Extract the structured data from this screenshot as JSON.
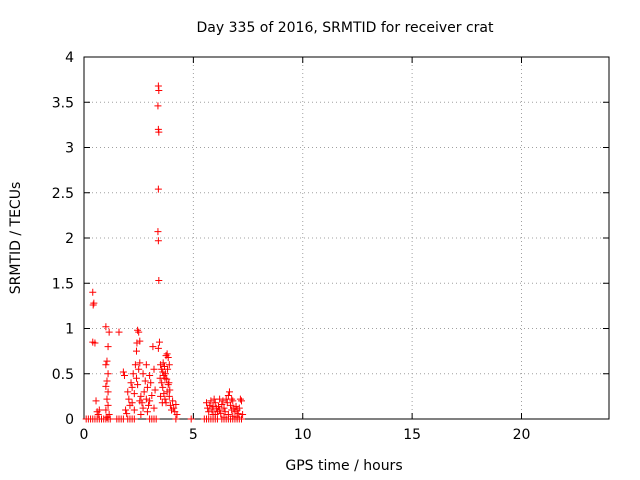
{
  "chart_data": {
    "type": "scatter",
    "title": "Day 335 of 2016, SRMTID for receiver crat",
    "xlabel": "GPS time / hours",
    "ylabel": "SRMTID / TECUs",
    "xlim": [
      0,
      24
    ],
    "ylim": [
      0,
      4
    ],
    "xticks": [
      0,
      5,
      10,
      15,
      20
    ],
    "yticks": [
      0,
      0.5,
      1,
      1.5,
      2,
      2.5,
      3,
      3.5,
      4
    ],
    "xtick_labels": [
      "0",
      "5",
      "10",
      "15",
      "20"
    ],
    "ytick_labels": [
      "0",
      "0.5",
      "1",
      "1.5",
      "2",
      "2.5",
      "3",
      "3.5",
      "4"
    ],
    "grid": true,
    "marker": "+",
    "color": "#ff0000",
    "series": [
      {
        "name": "SRMTID",
        "points": [
          [
            0.1,
            0
          ],
          [
            0.2,
            0
          ],
          [
            0.3,
            0
          ],
          [
            0.4,
            0
          ],
          [
            0.5,
            0
          ],
          [
            0.6,
            0
          ],
          [
            0.7,
            0
          ],
          [
            0.8,
            0
          ],
          [
            0.9,
            0
          ],
          [
            1.0,
            0
          ],
          [
            1.1,
            0
          ],
          [
            1.2,
            0
          ],
          [
            1.5,
            0
          ],
          [
            1.6,
            0
          ],
          [
            1.7,
            0
          ],
          [
            1.8,
            0
          ],
          [
            2.0,
            0
          ],
          [
            2.1,
            0
          ],
          [
            2.2,
            0
          ],
          [
            2.3,
            0
          ],
          [
            3.0,
            0
          ],
          [
            3.1,
            0
          ],
          [
            3.2,
            0
          ],
          [
            3.3,
            0
          ],
          [
            4.2,
            0
          ],
          [
            4.9,
            0
          ],
          [
            5.5,
            0
          ],
          [
            5.6,
            0
          ],
          [
            5.7,
            0
          ],
          [
            5.8,
            0
          ],
          [
            5.9,
            0
          ],
          [
            6.0,
            0
          ],
          [
            6.1,
            0
          ],
          [
            6.3,
            0
          ],
          [
            6.4,
            0
          ],
          [
            6.5,
            0
          ],
          [
            6.6,
            0
          ],
          [
            6.7,
            0
          ],
          [
            6.8,
            0
          ],
          [
            6.9,
            0
          ],
          [
            7.0,
            0
          ],
          [
            7.1,
            0
          ],
          [
            7.2,
            0
          ],
          [
            0.4,
            1.4
          ],
          [
            0.45,
            1.28
          ],
          [
            0.42,
            1.26
          ],
          [
            0.4,
            0.85
          ],
          [
            0.5,
            0.84
          ],
          [
            0.55,
            0.2
          ],
          [
            0.6,
            0.08
          ],
          [
            0.65,
            0.05
          ],
          [
            0.7,
            0.1
          ],
          [
            1.0,
            1.02
          ],
          [
            1.15,
            0.96
          ],
          [
            1.1,
            0.8
          ],
          [
            1.05,
            0.64
          ],
          [
            1.0,
            0.6
          ],
          [
            1.1,
            0.5
          ],
          [
            1.05,
            0.42
          ],
          [
            1.0,
            0.36
          ],
          [
            1.1,
            0.3
          ],
          [
            1.05,
            0.22
          ],
          [
            1.1,
            0.15
          ],
          [
            1.0,
            0.1
          ],
          [
            1.15,
            0.05
          ],
          [
            1.05,
            0.02
          ],
          [
            1.6,
            0.96
          ],
          [
            1.8,
            0.52
          ],
          [
            1.85,
            0.48
          ],
          [
            1.9,
            0.1
          ],
          [
            1.95,
            0.06
          ],
          [
            2.0,
            0.3
          ],
          [
            2.05,
            0.22
          ],
          [
            2.1,
            0.15
          ],
          [
            2.15,
            0.4
          ],
          [
            2.2,
            0.35
          ],
          [
            2.25,
            0.5
          ],
          [
            2.3,
            0.28
          ],
          [
            2.35,
            0.6
          ],
          [
            2.4,
            0.75
          ],
          [
            2.42,
            0.84
          ],
          [
            2.45,
            0.98
          ],
          [
            2.5,
            0.96
          ],
          [
            2.55,
            0.86
          ],
          [
            2.4,
            0.45
          ],
          [
            2.45,
            0.38
          ],
          [
            2.5,
            0.55
          ],
          [
            2.55,
            0.62
          ],
          [
            2.6,
            0.25
          ],
          [
            2.65,
            0.18
          ],
          [
            2.7,
            0.12
          ],
          [
            2.75,
            0.3
          ],
          [
            2.8,
            0.42
          ],
          [
            2.85,
            0.22
          ],
          [
            2.9,
            0.35
          ],
          [
            2.95,
            0.15
          ],
          [
            3.0,
            0.48
          ],
          [
            3.05,
            0.4
          ],
          [
            3.1,
            0.26
          ],
          [
            3.15,
            0.8
          ],
          [
            3.2,
            0.55
          ],
          [
            3.25,
            0.32
          ],
          [
            2.3,
            0.1
          ],
          [
            2.6,
            0.05
          ],
          [
            2.9,
            0.08
          ],
          [
            3.2,
            0.12
          ],
          [
            2.7,
            0.5
          ],
          [
            2.85,
            0.6
          ],
          [
            3.0,
            0.2
          ],
          [
            2.55,
            0.2
          ],
          [
            2.2,
            0.18
          ],
          [
            3.4,
            3.68
          ],
          [
            3.42,
            3.63
          ],
          [
            3.38,
            3.46
          ],
          [
            3.4,
            3.2
          ],
          [
            3.42,
            3.17
          ],
          [
            3.4,
            2.54
          ],
          [
            3.38,
            2.07
          ],
          [
            3.4,
            1.97
          ],
          [
            3.42,
            1.53
          ],
          [
            3.45,
            0.85
          ],
          [
            3.4,
            0.78
          ],
          [
            3.5,
            0.6
          ],
          [
            3.55,
            0.55
          ],
          [
            3.6,
            0.52
          ],
          [
            3.65,
            0.48
          ],
          [
            3.7,
            0.45
          ],
          [
            3.75,
            0.7
          ],
          [
            3.8,
            0.72
          ],
          [
            3.85,
            0.68
          ],
          [
            3.9,
            0.6
          ],
          [
            3.55,
            0.4
          ],
          [
            3.6,
            0.35
          ],
          [
            3.65,
            0.28
          ],
          [
            3.7,
            0.22
          ],
          [
            3.75,
            0.18
          ],
          [
            3.8,
            0.3
          ],
          [
            3.85,
            0.38
          ],
          [
            3.9,
            0.25
          ],
          [
            3.95,
            0.15
          ],
          [
            4.0,
            0.1
          ],
          [
            4.05,
            0.2
          ],
          [
            4.1,
            0.12
          ],
          [
            4.15,
            0.08
          ],
          [
            4.2,
            0.16
          ],
          [
            4.25,
            0.05
          ],
          [
            3.5,
            0.25
          ],
          [
            3.58,
            0.18
          ],
          [
            3.62,
            0.62
          ],
          [
            3.68,
            0.58
          ],
          [
            3.72,
            0.5
          ],
          [
            3.78,
            0.44
          ],
          [
            3.82,
            0.55
          ],
          [
            3.88,
            0.4
          ],
          [
            3.92,
            0.32
          ],
          [
            3.48,
            0.45
          ],
          [
            5.6,
            0.18
          ],
          [
            5.65,
            0.12
          ],
          [
            5.7,
            0.08
          ],
          [
            5.75,
            0.15
          ],
          [
            5.8,
            0.2
          ],
          [
            5.85,
            0.1
          ],
          [
            5.9,
            0.05
          ],
          [
            5.95,
            0.22
          ],
          [
            6.0,
            0.18
          ],
          [
            6.05,
            0.12
          ],
          [
            6.1,
            0.08
          ],
          [
            6.15,
            0.14
          ],
          [
            6.2,
            0.1
          ],
          [
            6.25,
            0.06
          ],
          [
            6.3,
            0.16
          ],
          [
            6.35,
            0.2
          ],
          [
            6.4,
            0.12
          ],
          [
            6.45,
            0.08
          ],
          [
            6.5,
            0.22
          ],
          [
            6.55,
            0.18
          ],
          [
            6.6,
            0.26
          ],
          [
            6.65,
            0.3
          ],
          [
            6.7,
            0.15
          ],
          [
            6.75,
            0.1
          ],
          [
            6.8,
            0.2
          ],
          [
            6.85,
            0.12
          ],
          [
            6.9,
            0.08
          ],
          [
            6.95,
            0.14
          ],
          [
            7.0,
            0.1
          ],
          [
            7.05,
            0.06
          ],
          [
            7.1,
            0.12
          ],
          [
            7.15,
            0.22
          ],
          [
            7.2,
            0.2
          ],
          [
            7.25,
            0.05
          ],
          [
            6.2,
            0.22
          ],
          [
            6.0,
            0.05
          ],
          [
            6.4,
            0.02
          ],
          [
            6.8,
            0.03
          ],
          [
            7.0,
            0.02
          ],
          [
            5.9,
            0.14
          ],
          [
            6.6,
            0.05
          ],
          [
            6.75,
            0.22
          ]
        ]
      }
    ]
  }
}
